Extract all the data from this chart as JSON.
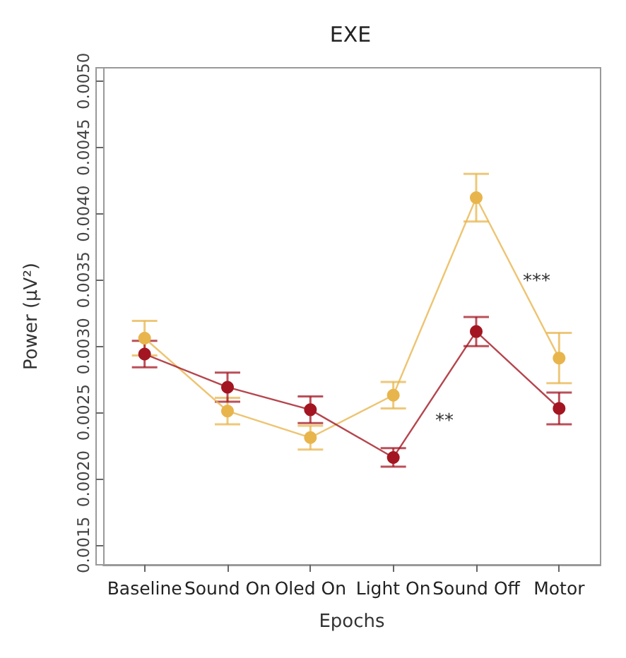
{
  "chart_data": {
    "type": "line",
    "title": "EXE",
    "xlabel": "Epochs",
    "ylabel": "Power (μV²)",
    "categories": [
      "Baseline",
      "Sound On",
      "Oled On",
      "Light On",
      "Sound Off",
      "Motor"
    ],
    "series": [
      {
        "color": "#e8b54d",
        "values": [
          0.00306,
          0.00251,
          0.00231,
          0.00263,
          0.00412,
          0.00291
        ],
        "errors": [
          0.00013,
          0.0001,
          9e-05,
          0.0001,
          0.00018,
          0.00019
        ]
      },
      {
        "color": "#a31621",
        "values": [
          0.00294,
          0.00269,
          0.00252,
          0.00216,
          0.00311,
          0.00253
        ],
        "errors": [
          0.0001,
          0.00011,
          0.0001,
          7e-05,
          0.00011,
          0.00012
        ]
      }
    ],
    "ylim": [
      0.00135,
      0.0051
    ],
    "yticks": [
      0.0015,
      {
        "value": 0.002,
        "label": "0.0020"
      },
      0.0025,
      {
        "value": 0.003,
        "label": "0.0030"
      },
      0.0035,
      {
        "value": 0.004,
        "label": "0.0040"
      },
      0.0045,
      {
        "value": 0.005,
        "label": "0.0050"
      }
    ],
    "marker": "circle",
    "grid": false,
    "annotations": [
      "**",
      "***"
    ]
  }
}
